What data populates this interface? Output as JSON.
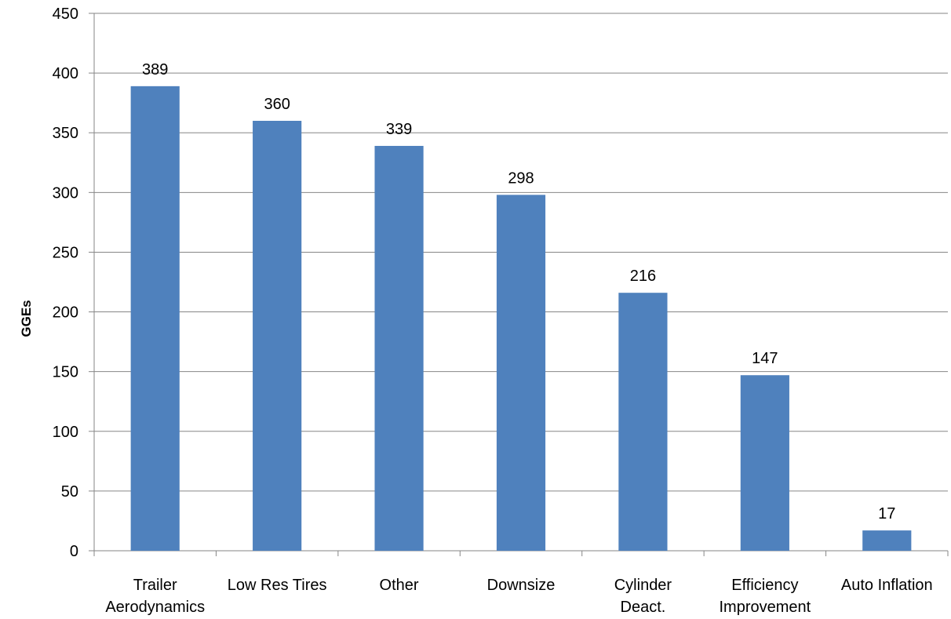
{
  "chart_data": {
    "type": "bar",
    "title": "",
    "xlabel": "",
    "ylabel": "GGEs",
    "ylim": [
      0,
      450
    ],
    "y_ticks": [
      "0",
      "50",
      "100",
      "150",
      "200",
      "250",
      "300",
      "350",
      "400",
      "450"
    ],
    "grid": true,
    "legend": "none",
    "bar_color": "#4F81BD",
    "categories": [
      [
        "Trailer",
        "Aerodynamics"
      ],
      [
        "Low Res Tires"
      ],
      [
        "Other"
      ],
      [
        "Downsize"
      ],
      [
        "Cylinder",
        "Deact."
      ],
      [
        "Efficiency",
        "Improvement"
      ],
      [
        "Auto Inflation"
      ]
    ],
    "values": [
      389,
      360,
      339,
      298,
      216,
      147,
      17
    ],
    "data_labels": [
      "389",
      "360",
      "339",
      "298",
      "216",
      "147",
      "17"
    ]
  }
}
